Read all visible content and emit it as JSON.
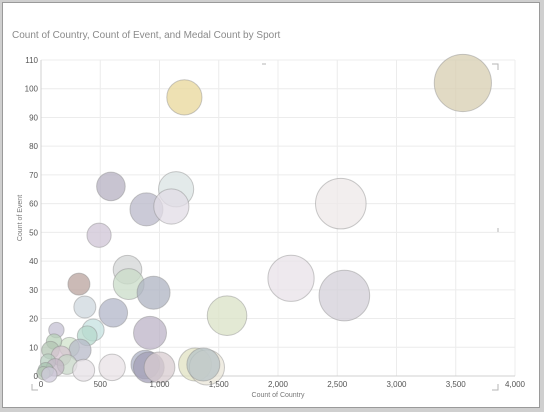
{
  "title": "Count of Country, Count of Event, and Medal Count by Sport",
  "chart_data": {
    "type": "scatter",
    "title": "Count of Country, Count of Event, and Medal Count by Sport",
    "xlabel": "Count of Country",
    "ylabel": "Count of Event",
    "xlim": [
      0,
      4000
    ],
    "ylim": [
      0,
      110
    ],
    "xticks": [
      "0",
      "500",
      "1,000",
      "1,500",
      "2,000",
      "2,500",
      "3,000",
      "3,500",
      "4,000"
    ],
    "yticks": [
      "0",
      "10",
      "20",
      "30",
      "40",
      "50",
      "60",
      "70",
      "80",
      "90",
      "100",
      "110"
    ],
    "grid": true,
    "points": [
      {
        "x": 3560,
        "y": 102,
        "size": 2.6,
        "color": "#d7cdb0"
      },
      {
        "x": 1210,
        "y": 97,
        "size": 1.6,
        "color": "#e8d79a"
      },
      {
        "x": 2530,
        "y": 60,
        "size": 2.3,
        "color": "#ede8e8"
      },
      {
        "x": 2560,
        "y": 28,
        "size": 2.3,
        "color": "#d3cfd8"
      },
      {
        "x": 2110,
        "y": 34,
        "size": 2.1,
        "color": "#e8e2e8"
      },
      {
        "x": 1570,
        "y": 21,
        "size": 1.8,
        "color": "#d9e1c6"
      },
      {
        "x": 590,
        "y": 66,
        "size": 1.3,
        "color": "#b5b0c2"
      },
      {
        "x": 1140,
        "y": 65,
        "size": 1.6,
        "color": "#d9e3e3"
      },
      {
        "x": 890,
        "y": 58,
        "size": 1.5,
        "color": "#b9b8ca"
      },
      {
        "x": 1100,
        "y": 59,
        "size": 1.6,
        "color": "#e2dce6"
      },
      {
        "x": 490,
        "y": 49,
        "size": 1.1,
        "color": "#cfc4d5"
      },
      {
        "x": 730,
        "y": 37,
        "size": 1.3,
        "color": "#d3d6d6"
      },
      {
        "x": 740,
        "y": 32,
        "size": 1.4,
        "color": "#c9dcc8"
      },
      {
        "x": 950,
        "y": 29,
        "size": 1.5,
        "color": "#aeb3c2"
      },
      {
        "x": 320,
        "y": 32,
        "size": 1.0,
        "color": "#b9a39d"
      },
      {
        "x": 370,
        "y": 24,
        "size": 1.0,
        "color": "#cdd7dd"
      },
      {
        "x": 610,
        "y": 22,
        "size": 1.3,
        "color": "#b1b5c8"
      },
      {
        "x": 920,
        "y": 15,
        "size": 1.5,
        "color": "#bcb3c7"
      },
      {
        "x": 440,
        "y": 16,
        "size": 1.0,
        "color": "#c6e1e0"
      },
      {
        "x": 390,
        "y": 14,
        "size": 0.9,
        "color": "#b6d8cc"
      },
      {
        "x": 240,
        "y": 10,
        "size": 0.9,
        "color": "#d0e3cb"
      },
      {
        "x": 130,
        "y": 16,
        "size": 0.7,
        "color": "#c4c0d3"
      },
      {
        "x": 110,
        "y": 12,
        "size": 0.7,
        "color": "#b7d0b8"
      },
      {
        "x": 330,
        "y": 9,
        "size": 1.0,
        "color": "#b7b9c8"
      },
      {
        "x": 80,
        "y": 9,
        "size": 0.8,
        "color": "#b3c5b3"
      },
      {
        "x": 170,
        "y": 7,
        "size": 0.9,
        "color": "#d5c4d0"
      },
      {
        "x": 60,
        "y": 5,
        "size": 0.7,
        "color": "#b8cfc0"
      },
      {
        "x": 220,
        "y": 4,
        "size": 0.9,
        "color": "#c7d6c7"
      },
      {
        "x": 120,
        "y": 3,
        "size": 0.8,
        "color": "#c3b7c5"
      },
      {
        "x": 40,
        "y": 2,
        "size": 0.7,
        "color": "#a8c3b0"
      },
      {
        "x": 360,
        "y": 2,
        "size": 1.0,
        "color": "#e6e0e6"
      },
      {
        "x": 600,
        "y": 3,
        "size": 1.2,
        "color": "#e8e2e6"
      },
      {
        "x": 880,
        "y": 4,
        "size": 1.3,
        "color": "#adb1c6"
      },
      {
        "x": 910,
        "y": 3,
        "size": 1.4,
        "color": "#a39fb7"
      },
      {
        "x": 1000,
        "y": 3,
        "size": 1.4,
        "color": "#d8ccd0"
      },
      {
        "x": 1300,
        "y": 4,
        "size": 1.5,
        "color": "#e0e2c2"
      },
      {
        "x": 1400,
        "y": 3,
        "size": 1.6,
        "color": "#eae6d8"
      },
      {
        "x": 1370,
        "y": 4,
        "size": 1.5,
        "color": "#b7c3c5"
      },
      {
        "x": 20,
        "y": 1,
        "size": 0.6,
        "color": "#b5c6b5"
      },
      {
        "x": 70,
        "y": 0.5,
        "size": 0.7,
        "color": "#cfcadb"
      }
    ]
  }
}
